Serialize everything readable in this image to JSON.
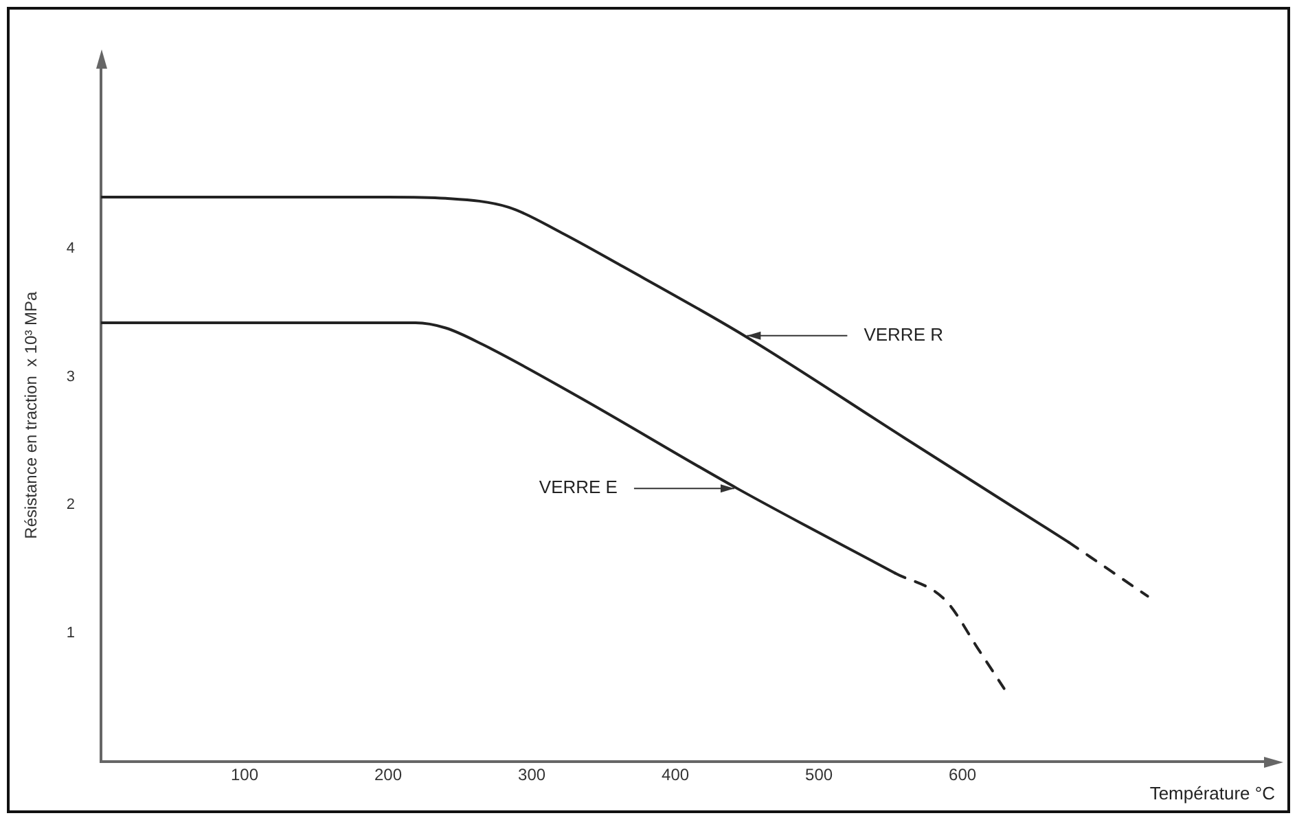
{
  "chart_data": {
    "type": "line",
    "xlabel": "Température °C",
    "ylabel": "Résistance en traction  x 10³ MPa",
    "xlim": [
      0,
      810
    ],
    "xticks": [
      100,
      200,
      300,
      400,
      500,
      600
    ],
    "ylim": [
      0,
      5.4
    ],
    "yticks": [
      1,
      2,
      3,
      4
    ],
    "grid": false,
    "legend": false,
    "marker": "none",
    "series": [
      {
        "color": "#222222",
        "line_style": "solid",
        "x": [
          0,
          100,
          200,
          240,
          284,
          321,
          360,
          448,
          560,
          674
        ],
        "values": [
          4.4,
          4.4,
          4.4,
          4.39,
          4.32,
          4.12,
          3.88,
          3.32,
          2.52,
          1.71
        ]
      },
      {
        "color": "#222222",
        "line_style": "dashed",
        "x": [
          674,
          729
        ],
        "values": [
          1.71,
          1.29
        ]
      },
      {
        "color": "#222222",
        "line_style": "solid",
        "x": [
          0,
          100,
          219,
          240,
          266,
          330,
          443,
          553
        ],
        "values": [
          3.42,
          3.42,
          3.42,
          3.38,
          3.25,
          2.86,
          2.13,
          1.47
        ]
      },
      {
        "color": "#222222",
        "line_style": "dashed",
        "x": [
          553,
          588,
          612,
          629
        ],
        "values": [
          1.47,
          1.26,
          0.86,
          0.57
        ]
      }
    ],
    "annotations": [
      {
        "text": "VERRE R",
        "x": 448,
        "y": 3.32
      },
      {
        "text": "VERRE E",
        "x": 443,
        "y": 2.13
      }
    ]
  }
}
